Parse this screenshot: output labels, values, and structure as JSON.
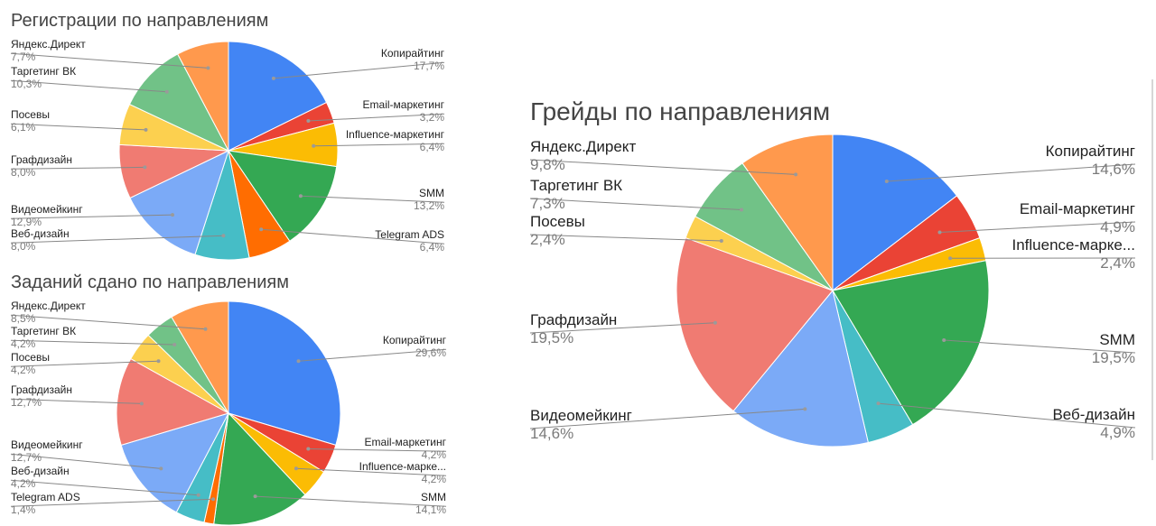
{
  "chart_data": [
    {
      "type": "pie",
      "title": "Регистрации по направлениям",
      "slices": [
        {
          "name": "Копирайтинг",
          "value": 17.7,
          "label": "17,7%",
          "color": "#4285F4"
        },
        {
          "name": "Email-маркетинг",
          "value": 3.2,
          "label": "3,2%",
          "color": "#EA4335"
        },
        {
          "name": "Influence-маркетинг",
          "value": 6.4,
          "label": "6,4%",
          "color": "#FBBC04"
        },
        {
          "name": "SMM",
          "value": 13.2,
          "label": "13,2%",
          "color": "#34A853"
        },
        {
          "name": "Telegram ADS",
          "value": 6.4,
          "label": "6,4%",
          "color": "#FF6D01"
        },
        {
          "name": "Веб-дизайн",
          "value": 8.0,
          "label": "8,0%",
          "color": "#46BDC6"
        },
        {
          "name": "Видеомейкинг",
          "value": 12.9,
          "label": "12,9%",
          "color": "#7BAAF7"
        },
        {
          "name": "Графдизайн",
          "value": 8.0,
          "label": "8,0%",
          "color": "#F07B72"
        },
        {
          "name": "Посевы",
          "value": 6.1,
          "label": "6,1%",
          "color": "#FCD04F"
        },
        {
          "name": "Таргетинг ВК",
          "value": 10.3,
          "label": "10,3%",
          "color": "#71C287"
        },
        {
          "name": "Яндекс.Директ",
          "value": 7.7,
          "label": "7,7%",
          "color": "#FF994D"
        }
      ]
    },
    {
      "type": "pie",
      "title": "Заданий сдано по направлениям",
      "slices": [
        {
          "name": "Копирайтинг",
          "value": 29.6,
          "label": "29,6%",
          "color": "#4285F4"
        },
        {
          "name": "Email-маркетинг",
          "value": 4.2,
          "label": "4,2%",
          "color": "#EA4335"
        },
        {
          "name": "Influence-марке...",
          "value": 4.2,
          "label": "4,2%",
          "color": "#FBBC04"
        },
        {
          "name": "SMM",
          "value": 14.1,
          "label": "14,1%",
          "color": "#34A853"
        },
        {
          "name": "Telegram ADS",
          "value": 1.4,
          "label": "1,4%",
          "color": "#FF6D01"
        },
        {
          "name": "Веб-дизайн",
          "value": 4.2,
          "label": "4,2%",
          "color": "#46BDC6"
        },
        {
          "name": "Видеомейкинг",
          "value": 12.7,
          "label": "12,7%",
          "color": "#7BAAF7"
        },
        {
          "name": "Графдизайн",
          "value": 12.7,
          "label": "12,7%",
          "color": "#F07B72"
        },
        {
          "name": "Посевы",
          "value": 4.2,
          "label": "4,2%",
          "color": "#FCD04F"
        },
        {
          "name": "Таргетинг ВК",
          "value": 4.2,
          "label": "4,2%",
          "color": "#71C287"
        },
        {
          "name": "Яндекс.Директ",
          "value": 8.5,
          "label": "8,5%",
          "color": "#FF994D"
        }
      ]
    },
    {
      "type": "pie",
      "title": "Грейды по направлениям",
      "slices": [
        {
          "name": "Копирайтинг",
          "value": 14.6,
          "label": "14,6%",
          "color": "#4285F4"
        },
        {
          "name": "Email-маркетинг",
          "value": 4.9,
          "label": "4,9%",
          "color": "#EA4335"
        },
        {
          "name": "Influence-марке...",
          "value": 2.4,
          "label": "2,4%",
          "color": "#FBBC04"
        },
        {
          "name": "SMM",
          "value": 19.5,
          "label": "19,5%",
          "color": "#34A853"
        },
        {
          "name": "Веб-дизайн",
          "value": 4.9,
          "label": "4,9%",
          "color": "#46BDC6"
        },
        {
          "name": "Видеомейкинг",
          "value": 14.6,
          "label": "14,6%",
          "color": "#7BAAF7"
        },
        {
          "name": "Графдизайн",
          "value": 19.5,
          "label": "19,5%",
          "color": "#F07B72"
        },
        {
          "name": "Посевы",
          "value": 2.4,
          "label": "2,4%",
          "color": "#FCD04F"
        },
        {
          "name": "Таргетинг ВК",
          "value": 7.3,
          "label": "7,3%",
          "color": "#71C287"
        },
        {
          "name": "Яндекс.Директ",
          "value": 9.8,
          "label": "9,8%",
          "color": "#FF994D"
        }
      ]
    }
  ]
}
